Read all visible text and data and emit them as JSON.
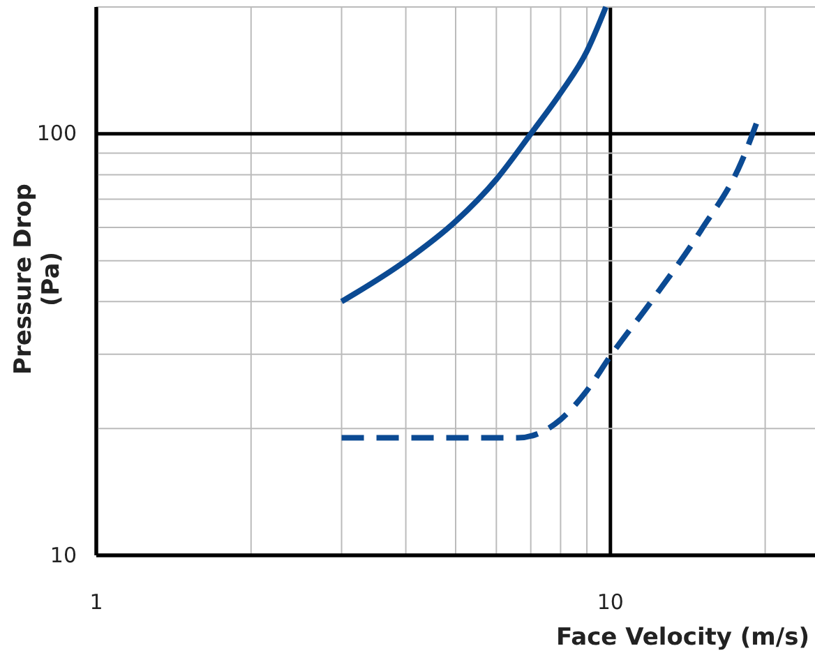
{
  "chart_data": {
    "type": "line",
    "xlabel": "Face Velocity (m/s)",
    "ylabel": "Pressure Drop (Pa)",
    "log": "xy",
    "grid": true,
    "marker": "none",
    "xlim": [
      1,
      25
    ],
    "xticks": [
      1,
      {
        "value": 2,
        "label": null
      },
      {
        "value": 3,
        "label": null
      },
      {
        "value": 4,
        "label": null
      },
      {
        "value": 5,
        "label": null
      },
      {
        "value": 6,
        "label": null
      },
      {
        "value": 7,
        "label": null
      },
      {
        "value": 8,
        "label": null
      },
      {
        "value": 9,
        "label": null
      },
      10,
      {
        "value": 20,
        "label": null
      }
    ],
    "ylim": [
      10,
      200
    ],
    "yticks": [
      10,
      {
        "value": 20,
        "label": null
      },
      {
        "value": 30,
        "label": null
      },
      {
        "value": 40,
        "label": null
      },
      {
        "value": 50,
        "label": null
      },
      {
        "value": 60,
        "label": null
      },
      {
        "value": 70,
        "label": null
      },
      {
        "value": 80,
        "label": null
      },
      {
        "value": 90,
        "label": null
      },
      100,
      {
        "value": 200,
        "label": null
      }
    ],
    "series": [
      {
        "color": "#0b4a93",
        "line_style": "solid",
        "x": [
          3,
          4,
          5,
          6,
          7,
          8,
          9,
          9.8
        ],
        "values": [
          40,
          50,
          62,
          78,
          100,
          125,
          157,
          200
        ]
      },
      {
        "color": "#0b4a93",
        "line_style": "dashed",
        "x": [
          3,
          4,
          5,
          6,
          6.6,
          8,
          9,
          10,
          12,
          15,
          18,
          19.4
        ],
        "values": [
          19,
          19,
          19,
          19,
          19,
          21,
          24.6,
          29.7,
          40,
          59,
          86,
          109
        ]
      }
    ]
  }
}
